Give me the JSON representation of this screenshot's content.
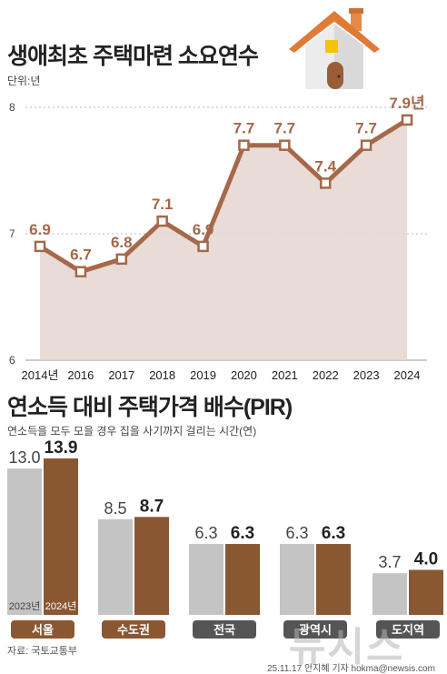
{
  "header": {
    "title": "생애최초 주택마련 소요연수",
    "unit": "단위:년"
  },
  "chart_data": [
    {
      "type": "area",
      "title": "생애최초 주택마련 소요연수",
      "unit": "단위:년",
      "categories": [
        "2014년",
        "2016",
        "2017",
        "2018",
        "2019",
        "2020",
        "2021",
        "2022",
        "2023",
        "2024"
      ],
      "values": [
        6.9,
        6.7,
        6.8,
        7.1,
        6.9,
        7.7,
        7.7,
        7.4,
        7.7,
        7.9
      ],
      "value_labels": [
        "6.9",
        "6.7",
        "6.8",
        "7.1",
        "6.9",
        "7.7",
        "7.7",
        "7.4",
        "7.7",
        "7.9년"
      ],
      "y_ticks": [
        "8",
        "7",
        "6"
      ],
      "ylim": [
        6,
        8
      ],
      "grid": true,
      "colors": {
        "line": "#a5684a",
        "fill": "#e5d5ce",
        "marker_fill": "#ffffff"
      }
    },
    {
      "type": "bar",
      "title": "연소득 대비 주택가격 배수(PIR)",
      "subtitle": "연소득을 모두 모을 경우 집을 사기까지 걸리는 시간(연)",
      "categories": [
        "서울",
        "수도권",
        "전국",
        "광역시",
        "도지역"
      ],
      "series": [
        {
          "name": "2023년",
          "values": [
            13.0,
            8.5,
            6.3,
            6.3,
            3.7
          ],
          "labels": [
            "13.0",
            "8.5",
            "6.3",
            "6.3",
            "3.7"
          ],
          "color": "#c4c4c4"
        },
        {
          "name": "2024년",
          "values": [
            13.9,
            8.7,
            6.3,
            6.3,
            4.0
          ],
          "labels": [
            "13.9",
            "8.7",
            "6.3",
            "6.3",
            "4.0"
          ],
          "color": "#8a5733"
        }
      ],
      "ylim": [
        0,
        13.9
      ],
      "category_label_colors": [
        "#8a5733",
        "#8a5733",
        "#555555",
        "#555555",
        "#555555"
      ]
    }
  ],
  "pir": {
    "title": "연소득 대비 주택가격 배수(PIR)",
    "subtitle": "연소득을 모두 모을 경우 집을 사기까지 걸리는 시간(연)"
  },
  "footer": {
    "source": "자료: 국토교통부",
    "credit": "25.11.17 안지혜 기자 hokma@newsis.com",
    "watermark": "뉴시스"
  }
}
